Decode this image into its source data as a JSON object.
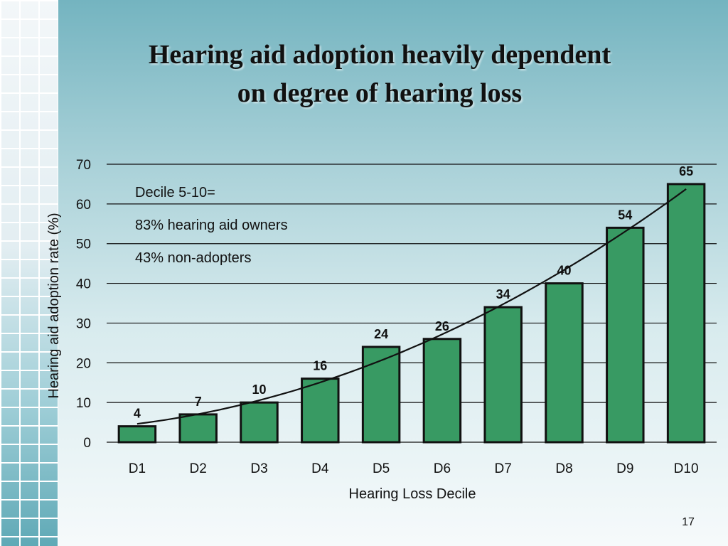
{
  "slide": {
    "title_line1": "Hearing aid adoption heavily dependent",
    "title_line2": "on degree of hearing loss",
    "page_number": "17"
  },
  "colors": {
    "bar_fill": "#389a63",
    "bar_stroke": "#111111",
    "trend_line": "#111111",
    "gridline": "#111111"
  },
  "chart_data": {
    "type": "bar",
    "categories": [
      "D1",
      "D2",
      "D3",
      "D4",
      "D5",
      "D6",
      "D7",
      "D8",
      "D9",
      "D10"
    ],
    "values": [
      4,
      7,
      10,
      16,
      24,
      26,
      34,
      40,
      54,
      65
    ],
    "xlabel": "Hearing Loss Decile",
    "ylabel": "Hearing aid adoption rate (%)",
    "ylim": [
      0,
      70
    ],
    "yticks": [
      0,
      10,
      20,
      30,
      40,
      50,
      60,
      70
    ],
    "grid": true,
    "data_labels": true,
    "trendline": "curved fit through bars",
    "annotation": [
      "Decile 5-10=",
      "83% hearing aid owners",
      "43% non-adopters"
    ]
  }
}
